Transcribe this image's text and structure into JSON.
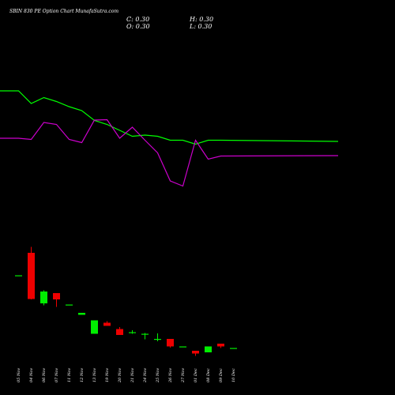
{
  "chart_data": {
    "type": "candlestick",
    "title": "SBIN 830 PE Option Chart MunafaSutra.com",
    "ohlc_readout": {
      "c": "C: 0.30",
      "h": "H: 0.30",
      "o": "O: 0.30",
      "l": "L: 0.30"
    },
    "x_labels": [
      "05 Nov",
      "04 Nov",
      "06 Nov",
      "07 Nov",
      "11 Nov",
      "12 Nov",
      "13 Nov",
      "19 Nov",
      "20 Nov",
      "21 Nov",
      "24 Nov",
      "25 Nov",
      "26 Nov",
      "27 Nov",
      "01 Dec",
      "08 Dec",
      "09 Dec",
      "10 Dec"
    ],
    "candles": [
      {
        "date": "05 Nov",
        "open": 18.3,
        "high": 18.3,
        "low": 18.3,
        "close": 18.3,
        "color": "green"
      },
      {
        "date": "04 Nov",
        "open": 24.0,
        "high": 25.5,
        "low": 12.2,
        "close": 12.3,
        "color": "red"
      },
      {
        "date": "06 Nov",
        "open": 11.2,
        "high": 14.5,
        "low": 10.7,
        "close": 14.2,
        "color": "green"
      },
      {
        "date": "07 Nov",
        "open": 13.8,
        "high": 13.8,
        "low": 10.3,
        "close": 12.2,
        "color": "red"
      },
      {
        "date": "11 Nov",
        "open": 10.9,
        "high": 10.9,
        "low": 10.9,
        "close": 10.9,
        "color": "green"
      },
      {
        "date": "12 Nov",
        "open": 8.3,
        "high": 8.8,
        "low": 8.3,
        "close": 8.8,
        "color": "green"
      },
      {
        "date": "13 Nov",
        "open": 3.5,
        "high": 6.9,
        "low": 3.5,
        "close": 6.9,
        "color": "green"
      },
      {
        "date": "19 Nov",
        "open": 6.3,
        "high": 6.7,
        "low": 5.5,
        "close": 5.5,
        "color": "red"
      },
      {
        "date": "20 Nov",
        "open": 4.7,
        "high": 5.2,
        "low": 3.2,
        "close": 3.2,
        "color": "red"
      },
      {
        "date": "21 Nov",
        "open": 3.9,
        "high": 4.4,
        "low": 3.5,
        "close": 3.9,
        "color": "green"
      },
      {
        "date": "24 Nov",
        "open": 3.5,
        "high": 3.7,
        "low": 2.1,
        "close": 3.5,
        "color": "green"
      },
      {
        "date": "25 Nov",
        "open": 2.2,
        "high": 3.6,
        "low": 1.6,
        "close": 2.2,
        "color": "green"
      },
      {
        "date": "26 Nov",
        "open": 2.2,
        "high": 2.2,
        "low": 0.0,
        "close": 0.3,
        "color": "red"
      },
      {
        "date": "27 Nov",
        "open": 0.3,
        "high": 0.3,
        "low": 0.3,
        "close": 0.3,
        "color": "green"
      },
      {
        "date": "01 Dec",
        "open": -0.8,
        "high": -0.8,
        "low": -2.1,
        "close": -1.5,
        "color": "red"
      },
      {
        "date": "08 Dec",
        "open": -1.2,
        "high": 0.3,
        "low": -1.2,
        "close": 0.3,
        "color": "green"
      },
      {
        "date": "09 Dec",
        "open": 1.0,
        "high": 1.0,
        "low": -0.1,
        "close": 0.3,
        "color": "red"
      },
      {
        "date": "10 Dec",
        "open": -0.1,
        "high": -0.1,
        "low": -0.1,
        "close": -0.1,
        "color": "green"
      }
    ],
    "ma_lines": [
      {
        "color": "#00ff00",
        "values": [
          65.0,
          65.0,
          61.8,
          63.3,
          62.3,
          61.0,
          60.0,
          57.5,
          56.5,
          55.0,
          53.5,
          53.8,
          53.5,
          52.5,
          52.5,
          51.5,
          52.5,
          52.5,
          52.2
        ]
      },
      {
        "color": "#cc00cc",
        "values": [
          53.0,
          53.0,
          52.7,
          57.0,
          56.5,
          52.7,
          51.9,
          57.6,
          57.7,
          53.0,
          55.8,
          52.5,
          49.3,
          42.2,
          40.9,
          52.5,
          47.7,
          48.5,
          48.6
        ]
      }
    ],
    "ylim": [
      -4,
      84
    ]
  }
}
